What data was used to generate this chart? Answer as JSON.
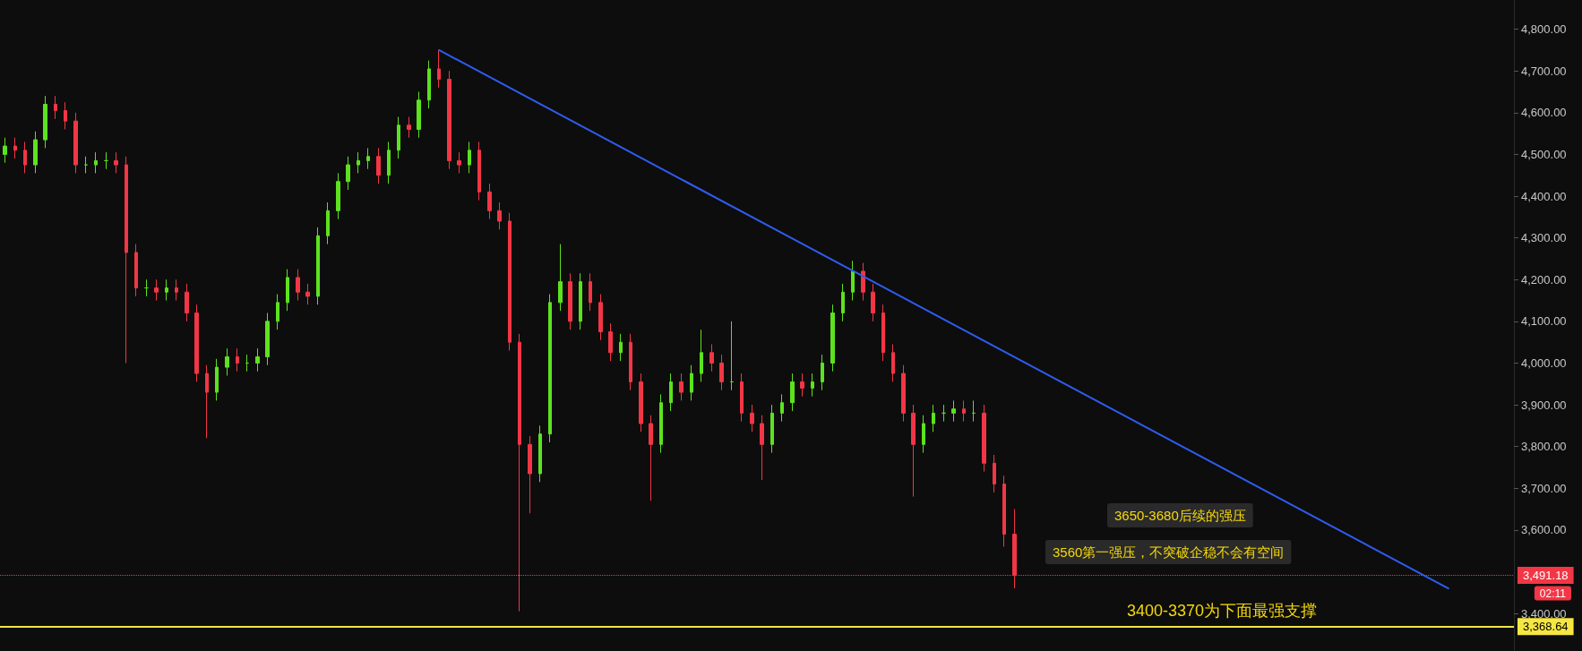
{
  "chart_data": {
    "type": "candlestick",
    "categories": [
      null,
      null,
      null,
      null,
      null,
      null,
      null,
      null,
      null,
      null,
      null,
      null,
      null,
      null,
      null,
      null,
      null,
      null,
      null,
      null,
      null,
      null,
      null,
      null,
      null,
      null,
      null,
      null,
      null,
      null,
      null,
      null,
      null,
      null,
      null,
      null,
      null,
      null,
      null,
      null,
      null,
      null,
      null,
      null,
      null,
      null,
      null,
      null,
      null,
      null,
      null,
      null,
      null,
      null,
      null,
      null,
      null,
      null,
      null,
      null,
      null,
      null,
      null,
      null,
      null,
      null,
      null,
      null,
      null,
      null,
      null,
      null,
      null,
      null,
      null,
      null,
      null,
      null,
      null,
      null,
      null,
      null,
      null,
      null,
      null,
      null,
      null,
      null,
      null,
      null,
      null,
      null,
      null,
      null,
      null,
      null,
      null,
      null,
      null,
      null,
      null,
      null,
      null,
      null,
      null,
      null,
      null,
      null,
      null,
      null,
      null,
      null,
      null,
      null,
      null,
      null,
      null,
      null,
      null,
      null,
      null,
      null,
      null,
      null,
      null,
      null,
      null,
      null,
      null,
      null,
      null,
      null,
      null,
      null,
      null,
      null,
      null,
      null,
      null,
      null,
      null,
      null,
      null,
      null,
      null,
      null,
      null,
      null,
      null,
      null
    ],
    "ohlc": [
      [
        4500,
        4540,
        4480,
        4520
      ],
      [
        4520,
        4540,
        4490,
        4510
      ],
      [
        4510,
        4530,
        4455,
        4475
      ],
      [
        4475,
        4555,
        4455,
        4535
      ],
      [
        4535,
        4640,
        4515,
        4620
      ],
      [
        4620,
        4640,
        4585,
        4605
      ],
      [
        4605,
        4625,
        4560,
        4580
      ],
      [
        4580,
        4600,
        4455,
        4475
      ],
      [
        4475,
        4495,
        4455,
        4475
      ],
      [
        4475,
        4505,
        4455,
        4485
      ],
      [
        4485,
        4505,
        4465,
        4485
      ],
      [
        4485,
        4505,
        4455,
        4475
      ],
      [
        4475,
        4495,
        4000,
        4265
      ],
      [
        4265,
        4285,
        4160,
        4180
      ],
      [
        4180,
        4200,
        4160,
        4180
      ],
      [
        4180,
        4200,
        4150,
        4170
      ],
      [
        4170,
        4200,
        4150,
        4180
      ],
      [
        4180,
        4200,
        4150,
        4170
      ],
      [
        4170,
        4190,
        4100,
        4120
      ],
      [
        4120,
        4140,
        3955,
        3975
      ],
      [
        3975,
        3995,
        3820,
        3930
      ],
      [
        3930,
        4010,
        3910,
        3990
      ],
      [
        3990,
        4035,
        3970,
        4015
      ],
      [
        4015,
        4035,
        3980,
        4000
      ],
      [
        4000,
        4020,
        3980,
        4000
      ],
      [
        4000,
        4035,
        3980,
        4015
      ],
      [
        4015,
        4120,
        3995,
        4100
      ],
      [
        4100,
        4165,
        4080,
        4145
      ],
      [
        4145,
        4225,
        4125,
        4205
      ],
      [
        4205,
        4225,
        4150,
        4170
      ],
      [
        4170,
        4190,
        4140,
        4160
      ],
      [
        4160,
        4325,
        4140,
        4305
      ],
      [
        4305,
        4385,
        4285,
        4365
      ],
      [
        4365,
        4455,
        4345,
        4435
      ],
      [
        4435,
        4495,
        4415,
        4475
      ],
      [
        4475,
        4505,
        4455,
        4485
      ],
      [
        4485,
        4515,
        4465,
        4495
      ],
      [
        4495,
        4515,
        4430,
        4450
      ],
      [
        4450,
        4530,
        4430,
        4510
      ],
      [
        4510,
        4590,
        4490,
        4570
      ],
      [
        4570,
        4590,
        4540,
        4560
      ],
      [
        4560,
        4650,
        4540,
        4630
      ],
      [
        4630,
        4725,
        4610,
        4705
      ],
      [
        4705,
        4750,
        4660,
        4680
      ],
      [
        4680,
        4700,
        4465,
        4485
      ],
      [
        4485,
        4505,
        4455,
        4475
      ],
      [
        4475,
        4530,
        4455,
        4510
      ],
      [
        4510,
        4530,
        4390,
        4410
      ],
      [
        4410,
        4430,
        4345,
        4365
      ],
      [
        4365,
        4385,
        4320,
        4340
      ],
      [
        4340,
        4360,
        4030,
        4050
      ],
      [
        4050,
        4070,
        3405,
        3805
      ],
      [
        3805,
        3825,
        3640,
        3735
      ],
      [
        3735,
        3850,
        3715,
        3830
      ],
      [
        3830,
        4165,
        3810,
        4145
      ],
      [
        4145,
        4285,
        4125,
        4195
      ],
      [
        4195,
        4215,
        4080,
        4100
      ],
      [
        4100,
        4215,
        4080,
        4195
      ],
      [
        4195,
        4215,
        4125,
        4145
      ],
      [
        4145,
        4165,
        4055,
        4075
      ],
      [
        4075,
        4095,
        4005,
        4025
      ],
      [
        4025,
        4070,
        4005,
        4050
      ],
      [
        4050,
        4070,
        3935,
        3955
      ],
      [
        3955,
        3975,
        3835,
        3855
      ],
      [
        3855,
        3875,
        3670,
        3805
      ],
      [
        3805,
        3925,
        3785,
        3905
      ],
      [
        3905,
        3975,
        3885,
        3955
      ],
      [
        3955,
        3975,
        3910,
        3930
      ],
      [
        3930,
        3995,
        3910,
        3975
      ],
      [
        3975,
        4080,
        3955,
        4025
      ],
      [
        4025,
        4045,
        3980,
        4000
      ],
      [
        4000,
        4020,
        3935,
        3955
      ],
      [
        3955,
        4100,
        3935,
        3955
      ],
      [
        3955,
        3975,
        3860,
        3880
      ],
      [
        3880,
        3900,
        3835,
        3855
      ],
      [
        3855,
        3875,
        3720,
        3805
      ],
      [
        3805,
        3900,
        3785,
        3880
      ],
      [
        3880,
        3925,
        3860,
        3905
      ],
      [
        3905,
        3975,
        3885,
        3955
      ],
      [
        3955,
        3975,
        3920,
        3940
      ],
      [
        3940,
        3975,
        3920,
        3955
      ],
      [
        3955,
        4020,
        3935,
        4000
      ],
      [
        4000,
        4140,
        3980,
        4120
      ],
      [
        4120,
        4190,
        4100,
        4170
      ],
      [
        4170,
        4245,
        4150,
        4220
      ],
      [
        4220,
        4240,
        4150,
        4170
      ],
      [
        4170,
        4190,
        4100,
        4120
      ],
      [
        4120,
        4140,
        4005,
        4025
      ],
      [
        4025,
        4045,
        3955,
        3975
      ],
      [
        3975,
        3995,
        3860,
        3880
      ],
      [
        3880,
        3900,
        3680,
        3805
      ],
      [
        3805,
        3875,
        3785,
        3855
      ],
      [
        3855,
        3900,
        3835,
        3880
      ],
      [
        3880,
        3900,
        3860,
        3880
      ],
      [
        3880,
        3910,
        3860,
        3890
      ],
      [
        3890,
        3910,
        3860,
        3880
      ],
      [
        3880,
        3910,
        3860,
        3880
      ],
      [
        3880,
        3900,
        3740,
        3760
      ],
      [
        3760,
        3780,
        3690,
        3710
      ],
      [
        3710,
        3730,
        3560,
        3590
      ],
      [
        3590,
        3650,
        3460,
        3491.18
      ],
      null,
      null,
      null,
      null,
      null,
      null,
      null,
      null,
      null,
      null,
      null,
      null,
      null,
      null,
      null,
      null,
      null,
      null,
      null,
      null,
      null,
      null,
      null,
      null,
      null,
      null,
      null,
      null,
      null,
      null,
      null,
      null,
      null,
      null,
      null,
      null,
      null,
      null,
      null,
      null,
      null,
      null,
      null,
      null,
      null,
      null,
      null,
      null,
      null
    ],
    "series": [
      {
        "type": "line",
        "color": "#2f5cf0",
        "line_style": "solid",
        "marker": "none",
        "values": [
          null,
          null,
          null,
          null,
          null,
          null,
          null,
          null,
          null,
          null,
          null,
          null,
          null,
          null,
          null,
          null,
          null,
          null,
          null,
          null,
          null,
          null,
          null,
          null,
          null,
          null,
          null,
          null,
          null,
          null,
          null,
          null,
          null,
          null,
          null,
          null,
          null,
          null,
          null,
          null,
          null,
          null,
          null,
          4750,
          null,
          null,
          null,
          null,
          null,
          null,
          null,
          null,
          null,
          null,
          null,
          null,
          null,
          null,
          null,
          null,
          null,
          null,
          null,
          null,
          null,
          null,
          null,
          null,
          null,
          null,
          null,
          null,
          null,
          null,
          null,
          null,
          null,
          null,
          null,
          null,
          null,
          null,
          null,
          null,
          null,
          null,
          null,
          null,
          null,
          null,
          null,
          null,
          null,
          null,
          null,
          null,
          null,
          null,
          null,
          null,
          null,
          null,
          null,
          null,
          null,
          null,
          null,
          null,
          null,
          null,
          null,
          null,
          null,
          null,
          null,
          null,
          null,
          null,
          null,
          null,
          null,
          null,
          null,
          null,
          null,
          null,
          null,
          null,
          null,
          null,
          null,
          null,
          null,
          null,
          null,
          null,
          null,
          null,
          null,
          null,
          null,
          null,
          null,
          3460,
          null,
          null,
          null,
          null,
          null,
          null
        ]
      }
    ],
    "ylim": [
      3310,
      4870
    ],
    "yticks": [
      {
        "value": 3400,
        "label": "3,400.00"
      },
      {
        "value": 3600,
        "label": "3,600.00"
      },
      {
        "value": 3700,
        "label": "3,700.00"
      },
      {
        "value": 3800,
        "label": "3,800.00"
      },
      {
        "value": 3900,
        "label": "3,900.00"
      },
      {
        "value": 4000,
        "label": "4,000.00"
      },
      {
        "value": 4100,
        "label": "4,100.00"
      },
      {
        "value": 4200,
        "label": "4,200.00"
      },
      {
        "value": 4300,
        "label": "4,300.00"
      },
      {
        "value": 4400,
        "label": "4,400.00"
      },
      {
        "value": 4500,
        "label": "4,500.00"
      },
      {
        "value": 4600,
        "label": "4,600.00"
      },
      {
        "value": 4700,
        "label": "4,700.00"
      },
      {
        "value": 4800,
        "label": "4,800.00"
      }
    ],
    "ref_lines": [
      {
        "axis": "y",
        "value": 3368.64,
        "label": "3,368.64",
        "color": "#f5e642",
        "line_style": "solid"
      },
      {
        "axis": "y",
        "value": 3491.18,
        "label": "3,491.18",
        "color": "#f23645",
        "line_style": "dotted"
      }
    ],
    "annotations": [
      "02:11",
      "3650-3680后续的强压",
      "3560第一强压，不突破企稳不会有空间",
      "3400-3370为下面最强支撑"
    ],
    "grid": false,
    "tick_labels": "y"
  }
}
